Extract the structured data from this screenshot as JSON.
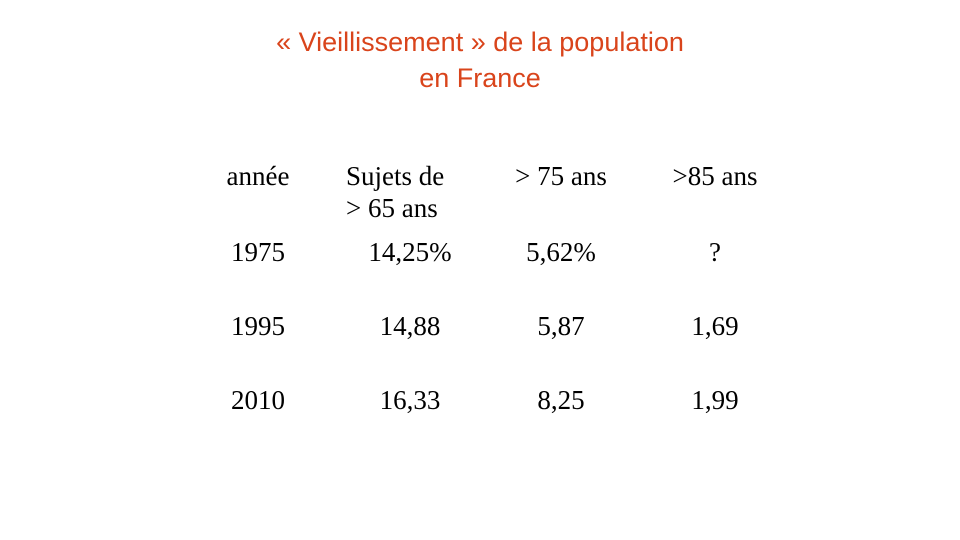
{
  "slide": {
    "title_line1": "« Vieillissement » de la population",
    "title_line2": "en France",
    "title_color": "#d9441b"
  },
  "table": {
    "headers": [
      "année",
      "Sujets de > 65 ans",
      "> 75 ans",
      ">85 ans"
    ],
    "header_col2_line1": "Sujets de",
    "header_col2_line2": "> 65 ans",
    "rows": [
      [
        "1975",
        "14,25%",
        "5,62%",
        "?"
      ],
      [
        "1995",
        "14,88",
        "5,87",
        "1,69"
      ],
      [
        "2010",
        "16,33",
        "8,25",
        "1,99"
      ]
    ]
  }
}
